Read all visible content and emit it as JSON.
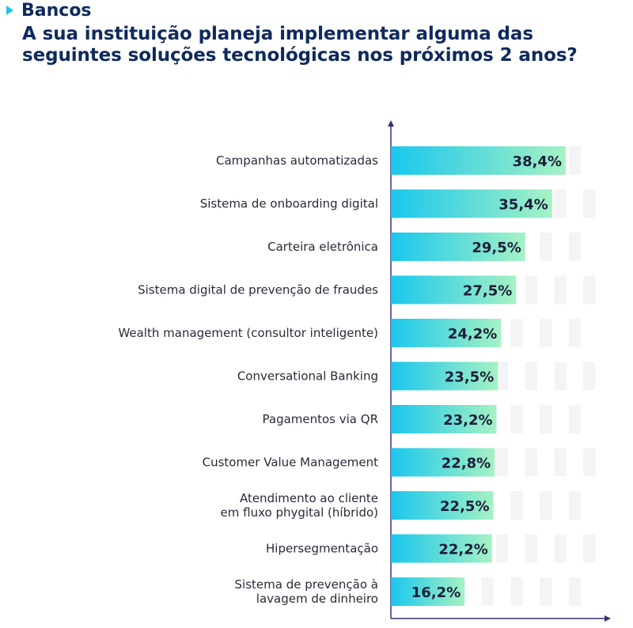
{
  "header": {
    "section": "Bancos",
    "title_line1": "A sua instituição planeja implementar alguma das",
    "title_line2": "seguintes soluções tecnológicas nos próximos 2 anos?"
  },
  "colors": {
    "bar_start": "#19c7ee",
    "bar_end": "#a6f2c3",
    "axis": "#3a2f6e",
    "title": "#0f2a5c"
  },
  "chart_data": {
    "type": "bar",
    "orientation": "horizontal",
    "title": "A sua instituição planeja implementar alguma das seguintes soluções tecnológicas nos próximos 2 anos?",
    "xlim": [
      0,
      60
    ],
    "categories": [
      [
        "Campanhas automatizadas"
      ],
      [
        "Sistema de  onboarding digital"
      ],
      [
        "Carteira eletrônica"
      ],
      [
        "Sistema digital de prevenção de fraudes"
      ],
      [
        "Wealth management (consultor inteligente)"
      ],
      [
        "Conversational Banking"
      ],
      [
        "Pagamentos via QR"
      ],
      [
        "Customer Value Management"
      ],
      [
        "Atendimento ao cliente",
        "em fluxo phygital (híbrido)"
      ],
      [
        "Hipersegmentação"
      ],
      [
        "Sistema de prevenção à",
        "lavagem de dinheiro"
      ]
    ],
    "values": [
      38.4,
      35.4,
      29.5,
      27.5,
      24.2,
      23.5,
      23.2,
      22.8,
      22.5,
      22.2,
      16.2
    ],
    "value_labels": [
      "38,4%",
      "35,4%",
      "29,5%",
      "27,5%",
      "24,2%",
      "23,5%",
      "23,2%",
      "22,8%",
      "22,5%",
      "22,2%",
      "16,2%"
    ]
  }
}
